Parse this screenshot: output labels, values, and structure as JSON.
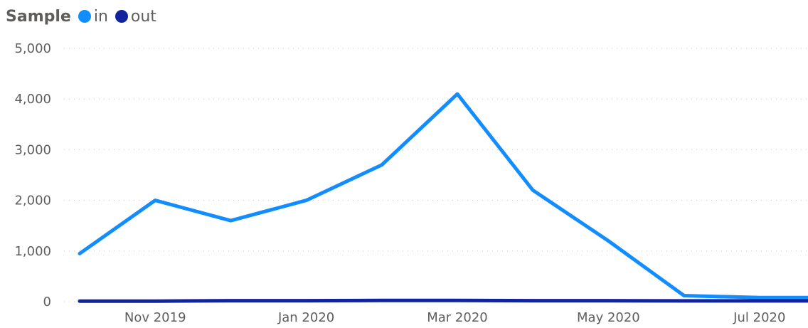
{
  "chart_data": {
    "type": "line",
    "title": "",
    "legend_title": "Sample",
    "legend_position": "top-left",
    "x": [
      "2019-10",
      "2019-11",
      "2019-12",
      "2020-01",
      "2020-02",
      "2020-03",
      "2020-04",
      "2020-05",
      "2020-06",
      "2020-07",
      "2020-08"
    ],
    "series": [
      {
        "name": "in",
        "color": "#118dff",
        "values": [
          950,
          2000,
          1600,
          2000,
          2700,
          4100,
          2200,
          1200,
          120,
          80,
          80
        ]
      },
      {
        "name": "out",
        "color": "#12239e",
        "values": [
          10,
          10,
          20,
          20,
          25,
          25,
          20,
          20,
          15,
          15,
          15
        ]
      }
    ],
    "ylim": [
      0,
      5000
    ],
    "y_ticks": [
      "0",
      "1,000",
      "2,000",
      "3,000",
      "4,000",
      "5,000"
    ],
    "x_tick_labels": [
      "Nov 2019",
      "Jan 2020",
      "Mar 2020",
      "May 2020",
      "Jul 2020"
    ],
    "grid": true,
    "xlabel": "",
    "ylabel": ""
  }
}
